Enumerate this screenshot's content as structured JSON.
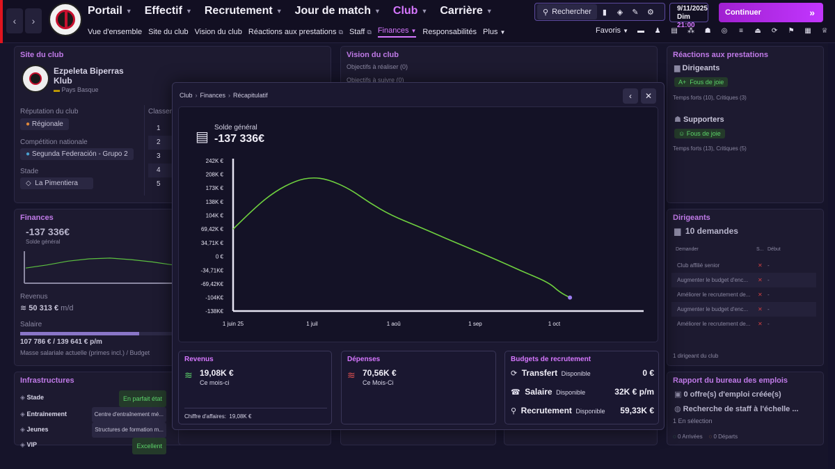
{
  "topbar": {
    "main_menu": [
      {
        "label": "Portail"
      },
      {
        "label": "Effectif"
      },
      {
        "label": "Recrutement"
      },
      {
        "label": "Jour de match"
      },
      {
        "label": "Club",
        "active": true
      },
      {
        "label": "Carrière"
      }
    ],
    "sub_menu": {
      "overview": "Vue d'ensemble",
      "site": "Site du club",
      "vision": "Vision du club",
      "reactions": "Réactions aux prestations",
      "staff": "Staff",
      "finances": "Finances",
      "responsibilities": "Responsabilités",
      "more": "Plus"
    },
    "search_label": "Rechercher",
    "date": "9/11/2025",
    "weekday": "Dim",
    "time": "21:00",
    "continue_label": "Continuer",
    "favorites_label": "Favoris"
  },
  "club_site": {
    "title": "Site du club",
    "club_name_line1": "Ezpeleta Biperras",
    "club_name_line2": "Klub",
    "region": "Pays Basque",
    "reputation_label": "Réputation du club",
    "reputation_value": "Régionale",
    "classement_label": "Classem",
    "competition_label": "Compétition nationale",
    "competition_value": "Segunda Federación - Grupo 2",
    "stadium_label": "Stade",
    "stadium_value": "La Pimentiera",
    "ranks": [
      "1",
      "2",
      "3",
      "4",
      "5"
    ]
  },
  "finances_panel": {
    "title": "Finances",
    "balance": "-137 336€",
    "balance_label": "Solde général",
    "revenue_label": "Revenus",
    "revenue_value": "50 313 €",
    "revenue_unit": "m/d",
    "salary_label": "Salaire",
    "salary_value": "107 786 € / 139 641 € p/m",
    "salary_note": "Masse salariale actuelle (primes incl.) / Budget",
    "salary_ratio": 0.77
  },
  "vision_panel": {
    "title": "Vision du club",
    "objectives_realize": "Objectifs à réaliser",
    "objectives_realize_count": "(0)",
    "objectives_follow": "Objectifs à suivre",
    "objectives_follow_count": "(0)"
  },
  "reactions_panel": {
    "title": "Réactions aux prestations",
    "board_label": "Dirigeants",
    "board_mood_grade": "A+",
    "board_mood": "Fous de joie",
    "board_detail": "Temps forts (10), Critiques (3)",
    "fans_label": "Supporters",
    "fans_mood": "Fous de joie",
    "fans_detail": "Temps forts (13), Critiques (5)"
  },
  "board_panel": {
    "title": "Dirigeants",
    "requests": "10 demandes",
    "col_request": "Demander",
    "col_s": "S...",
    "col_start": "Début",
    "rows": [
      {
        "label": "Club affilié senior",
        "status": "✕",
        "start": "-"
      },
      {
        "label": "Augmenter le budget d'enc...",
        "status": "✕",
        "start": "-"
      },
      {
        "label": "Améliorer le recrutement de...",
        "status": "✕",
        "start": "-"
      },
      {
        "label": "Augmenter le budget d'enc...",
        "status": "✕",
        "start": "-"
      },
      {
        "label": "Améliorer le recrutement de...",
        "status": "✕",
        "start": "-"
      }
    ],
    "footer": "1 dirigeant du club"
  },
  "jobs_panel": {
    "title": "Rapport du bureau des emplois",
    "offers": "0 offre(s) d'emploi créée(s)",
    "search": "Recherche de staff à l'échelle ...",
    "selection": "1 En sélection",
    "arrivals": "0 Arrivées",
    "departures": "0 Départs"
  },
  "infra_panel": {
    "title": "Infrastructures",
    "rows": [
      {
        "label": "Stade",
        "value": "En parfait état",
        "tag": true
      },
      {
        "label": "Entraînement",
        "value": "Centre d'entraînement mé...",
        "tag": false
      },
      {
        "label": "Jeunes",
        "value": "Structures de formation m...",
        "tag": false
      },
      {
        "label": "VIP",
        "value": "Excellent",
        "tag": true
      }
    ]
  },
  "modal": {
    "breadcrumb": [
      "Club",
      "Finances",
      "Récapitulatif"
    ],
    "balance_label": "Solde général",
    "balance_value": "-137 336€",
    "revenue_card": {
      "title": "Revenus",
      "value": "19,08K €",
      "period": "Ce mois-ci",
      "footer_label": "Chiffre d'affaires:",
      "footer_value": "19,08K €"
    },
    "expense_card": {
      "title": "Dépenses",
      "value": "70,56K €",
      "period": "Ce Mois-Ci"
    },
    "budget_card": {
      "title": "Budgets de recrutement",
      "rows": [
        {
          "label": "Transfert",
          "sub": "Disponible",
          "value": "0 €",
          "icon": "⟳"
        },
        {
          "label": "Salaire",
          "sub": "Disponible",
          "value": "32K € p/m",
          "icon": "☎"
        },
        {
          "label": "Recrutement",
          "sub": "Disponible",
          "value": "59,33K €",
          "icon": "⚲"
        }
      ]
    }
  },
  "chart_data": {
    "type": "line",
    "title": "Solde général",
    "ylim": [
      -138000,
      242000
    ],
    "y_ticks": [
      {
        "v": 242000,
        "label": "242K €"
      },
      {
        "v": 208000,
        "label": "208K €"
      },
      {
        "v": 173000,
        "label": "173K €"
      },
      {
        "v": 138000,
        "label": "138K €"
      },
      {
        "v": 104000,
        "label": "104K €"
      },
      {
        "v": 69420,
        "label": "69,42K €"
      },
      {
        "v": 34710,
        "label": "34,71K €"
      },
      {
        "v": 0,
        "label": "0 €"
      },
      {
        "v": -34710,
        "label": "-34,71K€"
      },
      {
        "v": -69420,
        "label": "-69,42K€"
      },
      {
        "v": -104000,
        "label": "-104K€"
      },
      {
        "v": -138000,
        "label": "-138K€"
      }
    ],
    "x_ticks": [
      {
        "day": 0,
        "label": "1 juin 25"
      },
      {
        "day": 30,
        "label": "1 juil"
      },
      {
        "day": 61,
        "label": "1 aoû"
      },
      {
        "day": 92,
        "label": "1 sep"
      },
      {
        "day": 122,
        "label": "1 oct"
      }
    ],
    "xlim": [
      0,
      156
    ],
    "points": [
      {
        "day": 0,
        "value": 69000
      },
      {
        "day": 8,
        "value": 122000
      },
      {
        "day": 16,
        "value": 165000
      },
      {
        "day": 24,
        "value": 192000
      },
      {
        "day": 30,
        "value": 200000
      },
      {
        "day": 36,
        "value": 195000
      },
      {
        "day": 44,
        "value": 172000
      },
      {
        "day": 52,
        "value": 135000
      },
      {
        "day": 60,
        "value": 104000
      },
      {
        "day": 70,
        "value": 77000
      },
      {
        "day": 80,
        "value": 48000
      },
      {
        "day": 90,
        "value": 20000
      },
      {
        "day": 100,
        "value": -8000
      },
      {
        "day": 110,
        "value": -38000
      },
      {
        "day": 120,
        "value": -66000
      },
      {
        "day": 124,
        "value": -90000
      },
      {
        "day": 128,
        "value": -104000
      }
    ],
    "line_color": "#6fd13f",
    "end_marker_color": "#9b7cf0"
  },
  "mini_chart_data": {
    "type": "line",
    "values": [
      18,
      22,
      27,
      30,
      31,
      29,
      26,
      22
    ]
  }
}
